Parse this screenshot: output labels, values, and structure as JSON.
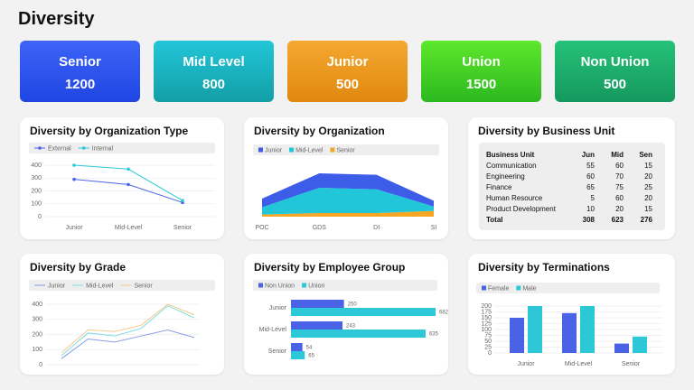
{
  "title": "Diversity",
  "kpis": [
    {
      "label": "Senior",
      "value": 1200
    },
    {
      "label": "Mid Level",
      "value": 800
    },
    {
      "label": "Junior",
      "value": 500
    },
    {
      "label": "Union",
      "value": 1500
    },
    {
      "label": "Non Union",
      "value": 500
    }
  ],
  "chart_data": [
    {
      "type": "line",
      "title": "Diversity by Organization Type",
      "markers": true,
      "grid": true,
      "categories": [
        "Junior",
        "Mid-Level",
        "Senior"
      ],
      "series": [
        {
          "name": "External",
          "color": "#4a63e6",
          "values": [
            290,
            250,
            110
          ]
        },
        {
          "name": "Internal",
          "color": "#2cc8d8",
          "values": [
            400,
            370,
            125
          ]
        }
      ],
      "ylim": [
        0,
        400
      ],
      "yticks": [
        0,
        100,
        200,
        300,
        400
      ]
    },
    {
      "type": "area",
      "title": "Diversity by Organization",
      "categories": [
        "POC",
        "GDS",
        "DI",
        "SI"
      ],
      "series": [
        {
          "name": "Junior",
          "color": "#3d5ce8",
          "values": [
            12,
            20,
            20,
            8
          ]
        },
        {
          "name": "Mid-Level",
          "color": "#22c6d9",
          "values": [
            10,
            35,
            33,
            6
          ]
        },
        {
          "name": "Senior",
          "color": "#f5a623",
          "values": [
            3,
            5,
            5,
            8
          ]
        }
      ]
    },
    {
      "type": "line",
      "title": "Diversity by Grade",
      "markers": false,
      "grid": true,
      "categories": [
        null,
        null,
        null,
        null,
        null,
        null
      ],
      "series": [
        {
          "name": "Junior",
          "color": "#8b9be8",
          "values": [
            40,
            170,
            150,
            190,
            230,
            180
          ]
        },
        {
          "name": "Mid-Level",
          "color": "#7fdbe6",
          "values": [
            60,
            210,
            190,
            240,
            390,
            310
          ]
        },
        {
          "name": "Senior",
          "color": "#f7c98a",
          "values": [
            80,
            230,
            220,
            260,
            400,
            330
          ]
        }
      ],
      "ylim": [
        0,
        400
      ],
      "yticks": [
        0,
        100,
        200,
        300,
        400
      ]
    },
    {
      "type": "bar",
      "horizontal": true,
      "data_labels": true,
      "title": "Diversity by Employee Group",
      "categories": [
        "Junior",
        "Mid-Level",
        "Senior"
      ],
      "series": [
        {
          "name": "Non Union",
          "color": "#4a63e6",
          "values": [
            250,
            243,
            54
          ]
        },
        {
          "name": "Union",
          "color": "#2cc8d8",
          "values": [
            682,
            635,
            65
          ]
        }
      ]
    },
    {
      "type": "bar",
      "title": "Diversity by Terminations",
      "grid": true,
      "categories": [
        "Junior",
        "Mid-Level",
        "Senior"
      ],
      "series": [
        {
          "name": "Female",
          "color": "#4a63e6",
          "values": [
            150,
            170,
            40
          ]
        },
        {
          "name": "Male",
          "color": "#2cc8d8",
          "values": [
            200,
            200,
            70
          ]
        }
      ],
      "ylim": [
        0,
        200
      ],
      "yticks": [
        0,
        25,
        50,
        75,
        100,
        125,
        150,
        175,
        200
      ]
    }
  ],
  "table": {
    "title": "Diversity by Business Unit",
    "columns": [
      "Business Unit",
      "Jun",
      "Mid",
      "Sen"
    ],
    "rows": [
      [
        "Communication",
        55,
        60,
        15
      ],
      [
        "Engineering",
        60,
        70,
        20
      ],
      [
        "Finance",
        65,
        75,
        25
      ],
      [
        "Human Resource",
        5,
        60,
        20
      ],
      [
        "Product Development",
        10,
        20,
        15
      ],
      [
        "Total",
        308,
        623,
        276
      ]
    ]
  }
}
